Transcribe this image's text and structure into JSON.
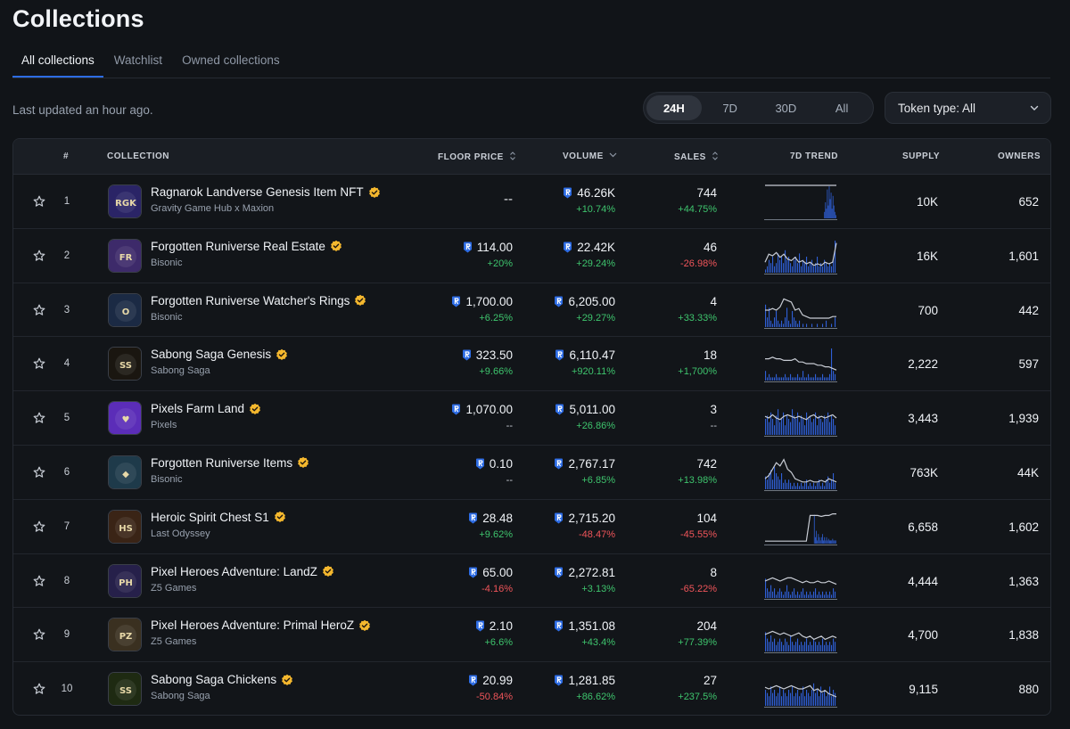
{
  "page": {
    "title": "Collections"
  },
  "tabs": [
    {
      "label": "All collections",
      "active": true
    },
    {
      "label": "Watchlist",
      "active": false
    },
    {
      "label": "Owned collections",
      "active": false
    }
  ],
  "status": {
    "last_updated": "Last updated an hour ago."
  },
  "time_ranges": [
    {
      "label": "24H",
      "active": true
    },
    {
      "label": "7D",
      "active": false
    },
    {
      "label": "30D",
      "active": false
    },
    {
      "label": "All",
      "active": false
    }
  ],
  "token_filter": {
    "label": "Token type: All"
  },
  "table": {
    "headers": {
      "rank": "#",
      "collection": "COLLECTION",
      "floor_price": "FLOOR PRICE",
      "volume": "VOLUME",
      "sales": "SALES",
      "trend": "7D TREND",
      "supply": "SUPPLY",
      "owners": "OWNERS"
    },
    "rows": [
      {
        "rank": "1",
        "name": "Ragnarok Landverse Genesis Item NFT",
        "creator": "Gravity Game Hub x Maxion",
        "floor": "--",
        "floor_change": "",
        "floor_dir": "neutral",
        "volume": "46.26K",
        "volume_change": "+10.74%",
        "volume_dir": "up",
        "sales": "744",
        "sales_change": "+44.75%",
        "sales_dir": "up",
        "supply": "10K",
        "owners": "652",
        "thumb_color": "#2a2466",
        "thumb_text": "RGK",
        "trend_line": [
          1,
          1,
          1,
          1,
          1,
          1,
          1,
          1,
          1,
          1,
          1,
          1,
          1,
          1,
          1,
          1,
          1,
          1,
          1,
          1
        ],
        "trend_bars": [
          0,
          0,
          0,
          0,
          0,
          0,
          0,
          0,
          0,
          0,
          0,
          0,
          0,
          0,
          0,
          0,
          0,
          0,
          0,
          0,
          0,
          0,
          0,
          0,
          0,
          0,
          0,
          0,
          0,
          0,
          0,
          0,
          0,
          0,
          0,
          0,
          0,
          0,
          0,
          0,
          0,
          0,
          0,
          0,
          0,
          0,
          0,
          0,
          0,
          0,
          0,
          0,
          0,
          0,
          0,
          0,
          0,
          0,
          0,
          0,
          0,
          0,
          0,
          0.2,
          0.5,
          0.3,
          0.9,
          0.4,
          1,
          0.6,
          0.8,
          0.3,
          0.7,
          0.4,
          0.2,
          0.1
        ]
      },
      {
        "rank": "2",
        "name": "Forgotten Runiverse Real Estate",
        "creator": "Bisonic",
        "floor": "114.00",
        "floor_change": "+20%",
        "floor_dir": "up",
        "volume": "22.42K",
        "volume_change": "+29.24%",
        "volume_dir": "up",
        "sales": "46",
        "sales_change": "-26.98%",
        "sales_dir": "down",
        "supply": "16K",
        "owners": "1,601",
        "thumb_color": "#3d2a6a",
        "thumb_text": "FR",
        "trend_line": [
          0.3,
          0.55,
          0.5,
          0.6,
          0.45,
          0.55,
          0.4,
          0.35,
          0.45,
          0.3,
          0.35,
          0.25,
          0.3,
          0.2,
          0.25,
          0.2,
          0.3,
          0.25,
          0.3,
          0.9
        ],
        "trend_bars": [
          0.1,
          0.2,
          0.4,
          0.3,
          0.5,
          0.2,
          0.3,
          0.6,
          0.4,
          0.5,
          0.3,
          0.7,
          0.4,
          0.5,
          0.3,
          0.2,
          0.4,
          0.5,
          0.3,
          0.6,
          0.2,
          0.4,
          0.3,
          0.5,
          0.2,
          0.3,
          0.4,
          0.2,
          0.3,
          0.5,
          0.2,
          0.3,
          0.2,
          0.4,
          0.3,
          0.2,
          0.3,
          0.2,
          0.4,
          1
        ]
      },
      {
        "rank": "3",
        "name": "Forgotten Runiverse Watcher's Rings",
        "creator": "Bisonic",
        "floor": "1,700.00",
        "floor_change": "+6.25%",
        "floor_dir": "up",
        "volume": "6,205.00",
        "volume_change": "+29.27%",
        "volume_dir": "up",
        "sales": "4",
        "sales_change": "+33.33%",
        "sales_dir": "up",
        "supply": "700",
        "owners": "442",
        "thumb_color": "#1b2a44",
        "thumb_text": "O",
        "trend_line": [
          0.5,
          0.5,
          0.55,
          0.5,
          0.6,
          0.85,
          0.8,
          0.75,
          0.5,
          0.55,
          0.35,
          0.3,
          0.25,
          0.25,
          0.25,
          0.25,
          0.25,
          0.25,
          0.3,
          0.3
        ],
        "trend_bars": [
          0.7,
          0.3,
          0.6,
          0.2,
          0.1,
          0.3,
          0.5,
          0.2,
          0.1,
          0.2,
          0.1,
          0.3,
          0.6,
          0.2,
          0.1,
          0.5,
          0.3,
          0.2,
          0.1,
          0.2,
          0,
          0.1,
          0,
          0.1,
          0,
          0,
          0.1,
          0,
          0,
          0.1,
          0,
          0,
          0.1,
          0,
          0.2,
          0,
          0,
          0.1,
          0,
          0.3
        ]
      },
      {
        "rank": "4",
        "name": "Sabong Saga Genesis",
        "creator": "Sabong Saga",
        "floor": "323.50",
        "floor_change": "+9.66%",
        "floor_dir": "up",
        "volume": "6,110.47",
        "volume_change": "+920.11%",
        "volume_dir": "up",
        "sales": "18",
        "sales_change": "+1,700%",
        "sales_dir": "up",
        "supply": "2,222",
        "owners": "597",
        "thumb_color": "#1a1610",
        "thumb_text": "SS",
        "trend_line": [
          0.65,
          0.65,
          0.7,
          0.65,
          0.65,
          0.6,
          0.6,
          0.6,
          0.65,
          0.55,
          0.55,
          0.5,
          0.5,
          0.5,
          0.45,
          0.45,
          0.4,
          0.4,
          0.35,
          0.3
        ],
        "trend_bars": [
          0.3,
          0.1,
          0.2,
          0.1,
          0.1,
          0.1,
          0.2,
          0.1,
          0.1,
          0.1,
          0.1,
          0.2,
          0.1,
          0.1,
          0.2,
          0.1,
          0.1,
          0.1,
          0.2,
          0.1,
          0.1,
          0.3,
          0.1,
          0.1,
          0.2,
          0.1,
          0.1,
          0.1,
          0.2,
          0.1,
          0.1,
          0.1,
          0.2,
          0.1,
          0.1,
          0.1,
          0.2,
          1,
          0.3,
          0.2
        ]
      },
      {
        "rank": "5",
        "name": "Pixels Farm Land",
        "creator": "Pixels",
        "floor": "1,070.00",
        "floor_change": "--",
        "floor_dir": "neutral",
        "volume": "5,011.00",
        "volume_change": "+26.86%",
        "volume_dir": "up",
        "sales": "3",
        "sales_change": "--",
        "sales_dir": "neutral",
        "supply": "3,443",
        "owners": "1,939",
        "thumb_color": "#5b2db8",
        "thumb_text": "♥",
        "trend_line": [
          0.55,
          0.5,
          0.6,
          0.5,
          0.45,
          0.55,
          0.6,
          0.55,
          0.5,
          0.55,
          0.5,
          0.45,
          0.55,
          0.6,
          0.5,
          0.55,
          0.5,
          0.55,
          0.6,
          0.5
        ],
        "trend_bars": [
          0.5,
          0.6,
          0.4,
          0.7,
          0.5,
          0.3,
          0.6,
          0.8,
          0.4,
          0.5,
          0.7,
          0.3,
          0.6,
          0.5,
          0.4,
          0.8,
          0.6,
          0.5,
          0.7,
          0.4,
          0.6,
          0.5,
          0.3,
          0.7,
          0.5,
          0.6,
          0.4,
          0.5,
          0.7,
          0.3,
          0.6,
          0.5,
          0.4,
          0.6,
          0.5,
          0.7,
          0.4,
          0.6,
          0.5,
          0.3
        ]
      },
      {
        "rank": "6",
        "name": "Forgotten Runiverse Items",
        "creator": "Bisonic",
        "floor": "0.10",
        "floor_change": "--",
        "floor_dir": "neutral",
        "volume": "2,767.17",
        "volume_change": "+6.85%",
        "volume_dir": "up",
        "sales": "742",
        "sales_change": "+13.98%",
        "sales_dir": "up",
        "supply": "763K",
        "owners": "44K",
        "thumb_color": "#1e3a4a",
        "thumb_text": "◆",
        "trend_line": [
          0.3,
          0.4,
          0.6,
          0.8,
          0.7,
          0.9,
          0.6,
          0.5,
          0.3,
          0.25,
          0.2,
          0.2,
          0.25,
          0.2,
          0.2,
          0.25,
          0.2,
          0.3,
          0.25,
          0.2
        ],
        "trend_bars": [
          0.4,
          0.3,
          0.5,
          0.6,
          0.3,
          0.7,
          0.5,
          0.4,
          0.3,
          0.5,
          0.2,
          0.3,
          0.2,
          0.3,
          0.2,
          0.1,
          0.2,
          0.1,
          0.2,
          0.1,
          0.2,
          0.1,
          0.2,
          0.3,
          0.1,
          0.2,
          0.1,
          0.2,
          0.1,
          0.2,
          0.3,
          0.1,
          0.2,
          0.1,
          0.3,
          0.4,
          0.2,
          0.3,
          0.5,
          0.2
        ]
      },
      {
        "rank": "7",
        "name": "Heroic Spirit Chest S1",
        "creator": "Last Odyssey",
        "floor": "28.48",
        "floor_change": "+9.62%",
        "floor_dir": "up",
        "volume": "2,715.20",
        "volume_change": "-48.47%",
        "volume_dir": "down",
        "sales": "104",
        "sales_change": "-45.55%",
        "sales_dir": "down",
        "supply": "6,658",
        "owners": "1,602",
        "thumb_color": "#3a2416",
        "thumb_text": "HS",
        "trend_line": [
          0.05,
          0.05,
          0.05,
          0.05,
          0.05,
          0.05,
          0.05,
          0.05,
          0.05,
          0.05,
          0.05,
          0.05,
          0.85,
          0.85,
          0.85,
          0.82,
          0.85,
          0.85,
          0.9,
          0.9
        ],
        "trend_bars": [
          0,
          0,
          0,
          0,
          0,
          0,
          0,
          0,
          0,
          0,
          0,
          0,
          0,
          0,
          0,
          0,
          0,
          0,
          0,
          0,
          0,
          0,
          0,
          0,
          0,
          0,
          0,
          0,
          0,
          0,
          0,
          0,
          0,
          0,
          0,
          0,
          0,
          0,
          0,
          0,
          0,
          0,
          0,
          0,
          0,
          0,
          0,
          0,
          0.9,
          0.2,
          0.4,
          0.1,
          0.3,
          0.2,
          0.1,
          0.2,
          0.3,
          0.1,
          0.2,
          0.1,
          0.2,
          0.1,
          0.15,
          0.1,
          0.1,
          0.1,
          0.15,
          0.1,
          0.1,
          0.1
        ]
      },
      {
        "rank": "8",
        "name": "Pixel Heroes Adventure: LandZ",
        "creator": "Z5 Games",
        "floor": "65.00",
        "floor_change": "-4.16%",
        "floor_dir": "down",
        "volume": "2,272.81",
        "volume_change": "+3.13%",
        "volume_dir": "up",
        "sales": "8",
        "sales_change": "-65.22%",
        "sales_dir": "down",
        "supply": "4,444",
        "owners": "1,363",
        "thumb_color": "#26204a",
        "thumb_text": "PH",
        "trend_line": [
          0.5,
          0.55,
          0.6,
          0.55,
          0.5,
          0.55,
          0.6,
          0.6,
          0.55,
          0.5,
          0.45,
          0.5,
          0.45,
          0.45,
          0.5,
          0.45,
          0.45,
          0.5,
          0.45,
          0.4
        ],
        "trend_bars": [
          0.6,
          0.3,
          0.2,
          0.4,
          0.2,
          0.3,
          0.1,
          0.2,
          0.3,
          0.2,
          0.1,
          0.2,
          0.4,
          0.2,
          0.1,
          0.2,
          0.3,
          0.1,
          0.2,
          0.1,
          0.2,
          0.3,
          0.1,
          0.2,
          0.1,
          0.2,
          0.1,
          0.2,
          0.3,
          0.1,
          0.2,
          0.1,
          0.2,
          0.1,
          0.2,
          0.1,
          0.2,
          0.1,
          0.3,
          0.2
        ]
      },
      {
        "rank": "9",
        "name": "Pixel Heroes Adventure: Primal HeroZ",
        "creator": "Z5 Games",
        "floor": "2.10",
        "floor_change": "+6.6%",
        "floor_dir": "up",
        "volume": "1,351.08",
        "volume_change": "+43.4%",
        "volume_dir": "up",
        "sales": "204",
        "sales_change": "+77.39%",
        "sales_dir": "up",
        "supply": "4,700",
        "owners": "1,838",
        "thumb_color": "#3a3020",
        "thumb_text": "PZ",
        "trend_line": [
          0.5,
          0.55,
          0.6,
          0.55,
          0.5,
          0.55,
          0.5,
          0.45,
          0.5,
          0.55,
          0.45,
          0.4,
          0.45,
          0.35,
          0.4,
          0.45,
          0.35,
          0.4,
          0.45,
          0.4
        ],
        "trend_bars": [
          0.6,
          0.4,
          0.3,
          0.5,
          0.3,
          0.4,
          0.2,
          0.3,
          0.4,
          0.3,
          0.2,
          0.4,
          0.3,
          0.2,
          0.5,
          0.3,
          0.2,
          0.3,
          0.4,
          0.2,
          0.3,
          0.2,
          0.3,
          0.4,
          0.2,
          0.3,
          0.2,
          0.4,
          0.3,
          0.2,
          0.3,
          0.2,
          0.4,
          0.2,
          0.3,
          0.2,
          0.3,
          0.2,
          0.4,
          0.3
        ]
      },
      {
        "rank": "10",
        "name": "Sabong Saga Chickens",
        "creator": "Sabong Saga",
        "floor": "20.99",
        "floor_change": "-50.84%",
        "floor_dir": "down",
        "volume": "1,281.85",
        "volume_change": "+86.62%",
        "volume_dir": "up",
        "sales": "27",
        "sales_change": "+237.5%",
        "sales_dir": "up",
        "supply": "9,115",
        "owners": "880",
        "thumb_color": "#1e2a12",
        "thumb_text": "SS",
        "trend_line": [
          0.55,
          0.5,
          0.55,
          0.6,
          0.55,
          0.5,
          0.55,
          0.6,
          0.55,
          0.5,
          0.5,
          0.55,
          0.6,
          0.45,
          0.5,
          0.4,
          0.45,
          0.35,
          0.3,
          0.25
        ],
        "trend_bars": [
          0.5,
          0.4,
          0.3,
          0.6,
          0.4,
          0.5,
          0.3,
          0.4,
          0.6,
          0.3,
          0.5,
          0.4,
          0.3,
          0.5,
          0.4,
          0.6,
          0.3,
          0.4,
          0.5,
          0.3,
          0.4,
          0.6,
          0.3,
          0.5,
          0.4,
          0.3,
          0.5,
          0.7,
          0.4,
          0.5,
          0.3,
          0.6,
          0.4,
          0.5,
          0.3,
          0.4,
          0.6,
          0.3,
          0.5,
          0.4
        ]
      }
    ]
  },
  "colors": {
    "accent": "#2d6ce4",
    "up": "#3ec46d",
    "down": "#f0555a",
    "trend_bar": "#2f5fd6",
    "trend_line": "#c8ccd4",
    "verified": "#f5b82e"
  }
}
